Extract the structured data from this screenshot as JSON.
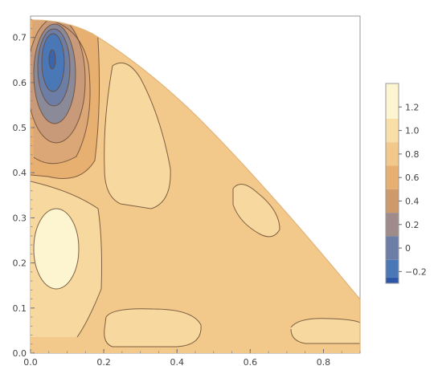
{
  "chart_data": {
    "type": "contour",
    "title": "",
    "xlabel": "",
    "ylabel": "",
    "xlim": [
      0.0,
      0.9
    ],
    "ylim": [
      0.0,
      0.74
    ],
    "x_ticks": [
      "0.0",
      "0.2",
      "0.4",
      "0.6",
      "0.8"
    ],
    "x_tick_values": [
      0.0,
      0.2,
      0.4,
      0.6,
      0.8
    ],
    "y_ticks": [
      "0.0",
      "0.1",
      "0.2",
      "0.3",
      "0.4",
      "0.5",
      "0.6",
      "0.7"
    ],
    "y_tick_values": [
      0.0,
      0.1,
      0.2,
      0.3,
      0.4,
      0.5,
      0.6,
      0.7
    ],
    "domain_boundary": "quarter-ellipse region bounded by x=0, y=0 and a curve from (0.0, 0.74) to (0.9, 0.1), with vertical edge x=0.9 down to y=0",
    "legend": {
      "placement": "right",
      "labels": [
        "1.2",
        "1.0",
        "0.8",
        "0.6",
        "0.4",
        "0.2",
        "0",
        "−0.2"
      ],
      "label_values": [
        1.2,
        1.0,
        0.8,
        0.6,
        0.4,
        0.2,
        0.0,
        -0.2
      ],
      "range": [
        -0.3,
        1.4
      ],
      "colors": [
        "#fdf5d0",
        "#f9dfa6",
        "#f2c98a",
        "#e8b070",
        "#cf9a6a",
        "#9f8c8a",
        "#6d7ea6",
        "#4a78b6",
        "#2e56a6"
      ]
    },
    "features": [
      {
        "kind": "minimum",
        "x": 0.06,
        "y": 0.63,
        "value": -0.3
      },
      {
        "kind": "maximum",
        "x": 0.05,
        "y": 0.21,
        "value": 1.3
      },
      {
        "kind": "maximum",
        "x": 0.28,
        "y": 0.48,
        "value": 1.1
      },
      {
        "kind": "maximum",
        "x": 0.61,
        "y": 0.3,
        "value": 1.0
      },
      {
        "kind": "maximum",
        "x": 0.33,
        "y": 0.04,
        "value": 1.0
      },
      {
        "kind": "maximum",
        "x": 0.82,
        "y": 0.04,
        "value": 1.0
      }
    ]
  }
}
